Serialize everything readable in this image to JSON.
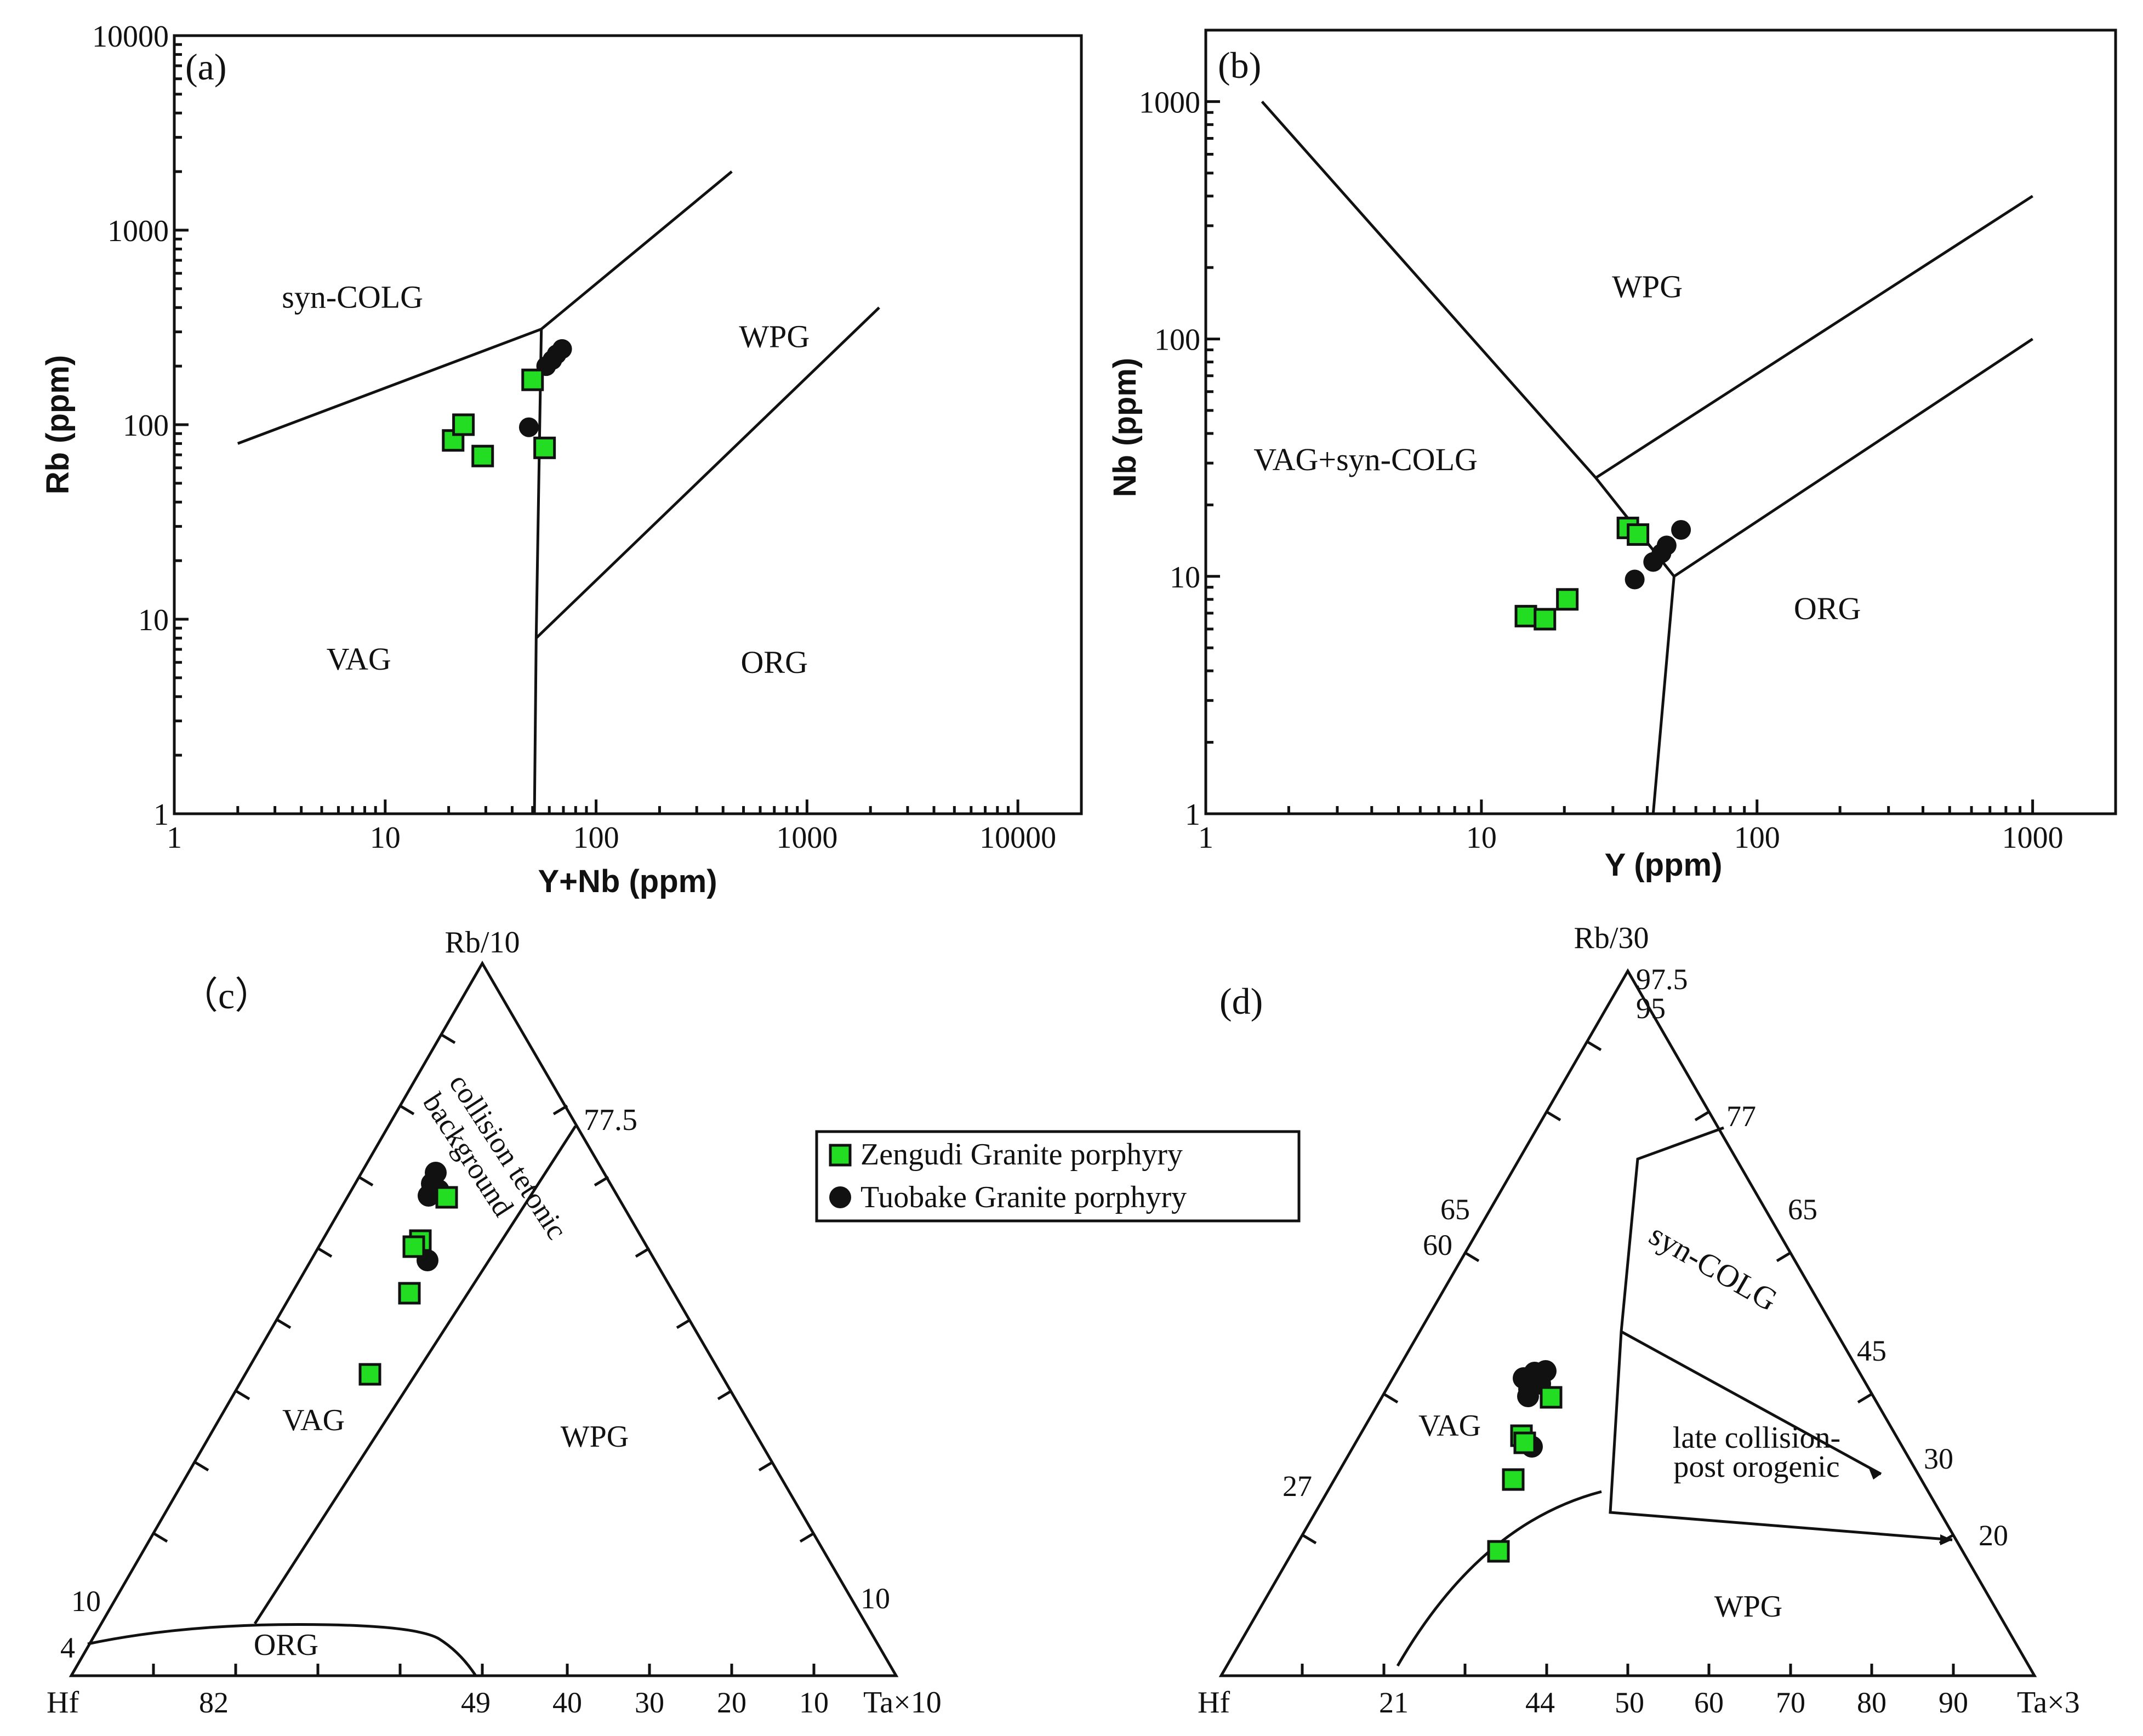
{
  "colors": {
    "zengudi": "#22dd22",
    "tuobake": "#111111",
    "line": "#111111"
  },
  "legend": {
    "items": [
      {
        "label": "Zengudi Granite porphyry",
        "marker": "green-square"
      },
      {
        "label": "Tuobake Granite porphyry",
        "marker": "black-circle"
      }
    ]
  },
  "chart_data": [
    {
      "id": "a",
      "panel_label": "(a)",
      "type": "scatter",
      "scale": "log-log",
      "xlabel": "Y+Nb (ppm)",
      "ylabel": "Rb (ppm)",
      "xlim": [
        1,
        20000
      ],
      "ylim": [
        1,
        10000
      ],
      "xticks": [
        {
          "v": 1,
          "label": "1"
        },
        {
          "v": 10,
          "label": "10"
        },
        {
          "v": 100,
          "label": "100"
        },
        {
          "v": 1000,
          "label": "1000"
        },
        {
          "v": 10000,
          "label": "10000"
        }
      ],
      "yticks": [
        {
          "v": 1,
          "label": "1"
        },
        {
          "v": 10,
          "label": "10"
        },
        {
          "v": 100,
          "label": "100"
        },
        {
          "v": 1000,
          "label": "1000"
        },
        {
          "v": 10000,
          "label": "10000"
        }
      ],
      "boundaries": [
        [
          [
            2,
            80
          ],
          [
            55,
            310
          ],
          [
            440,
            2000
          ]
        ],
        [
          [
            55,
            310
          ],
          [
            52,
            8
          ],
          [
            51,
            1
          ]
        ],
        [
          [
            52,
            8
          ],
          [
            2200,
            400
          ]
        ]
      ],
      "fields": [
        {
          "label": "syn-COLG",
          "x": 7,
          "y": 400
        },
        {
          "label": "WPG",
          "x": 700,
          "y": 250
        },
        {
          "label": "VAG",
          "x": 7.5,
          "y": 5.5
        },
        {
          "label": "ORG",
          "x": 700,
          "y": 5.3
        }
      ],
      "series": [
        {
          "name": "Zengudi Granite porphyry",
          "points": [
            [
              21,
              83
            ],
            [
              23.5,
              100
            ],
            [
              29,
              69
            ],
            [
              50,
              170
            ],
            [
              57,
              76
            ]
          ]
        },
        {
          "name": "Tuobake Granite porphyry",
          "points": [
            [
              48,
              97
            ],
            [
              58,
              200
            ],
            [
              62,
              215
            ],
            [
              65,
              230
            ],
            [
              69,
              245
            ]
          ]
        }
      ]
    },
    {
      "id": "b",
      "panel_label": "(b)",
      "type": "scatter",
      "scale": "log-log",
      "xlabel": "Y (ppm)",
      "ylabel": "Nb (ppm)",
      "xlim": [
        1,
        2000
      ],
      "ylim": [
        1,
        2000
      ],
      "xticks": [
        {
          "v": 1,
          "label": "1"
        },
        {
          "v": 10,
          "label": "10"
        },
        {
          "v": 100,
          "label": "100"
        },
        {
          "v": 1000,
          "label": "1000"
        }
      ],
      "yticks": [
        {
          "v": 1,
          "label": "1"
        },
        {
          "v": 10,
          "label": "10"
        },
        {
          "v": 100,
          "label": "100"
        },
        {
          "v": 1000,
          "label": "1000"
        }
      ],
      "boundaries": [
        [
          [
            1.6,
            1000
          ],
          [
            26,
            26
          ],
          [
            50,
            10
          ],
          [
            42,
            1
          ]
        ],
        [
          [
            26,
            26
          ],
          [
            1000,
            400
          ]
        ],
        [
          [
            50,
            10
          ],
          [
            1000,
            100
          ]
        ]
      ],
      "fields": [
        {
          "label": "WPG",
          "x": 40,
          "y": 150
        },
        {
          "label": "VAG+syn-COLG",
          "x": 3.8,
          "y": 28
        },
        {
          "label": "ORG",
          "x": 180,
          "y": 6.6
        }
      ],
      "series": [
        {
          "name": "Zengudi Granite porphyry",
          "points": [
            [
              14.5,
              6.8
            ],
            [
              17,
              6.6
            ],
            [
              20.5,
              8
            ],
            [
              34,
              16
            ],
            [
              37,
              15
            ]
          ]
        },
        {
          "name": "Tuobake Granite porphyry",
          "points": [
            [
              36,
              9.7
            ],
            [
              42,
              11.5
            ],
            [
              45,
              12.5
            ],
            [
              47,
              13.5
            ],
            [
              53,
              15.7
            ]
          ]
        }
      ]
    },
    {
      "id": "c",
      "panel_label": "（c）",
      "type": "ternary",
      "apex_top": "Rb/10",
      "apex_left": "Hf",
      "apex_right": "Ta×10",
      "edge_labels": [
        {
          "text": "77.5",
          "pos": "right-edge"
        },
        {
          "text": "10",
          "pos": "left-edge"
        },
        {
          "text": "4",
          "pos": "left-edge"
        },
        {
          "text": "10",
          "pos": "right-edge"
        },
        {
          "text": "82",
          "pos": "base"
        },
        {
          "text": "49",
          "pos": "base"
        },
        {
          "text": "40",
          "pos": "base"
        },
        {
          "text": "30",
          "pos": "base"
        },
        {
          "text": "20",
          "pos": "base"
        },
        {
          "text": "10",
          "pos": "base"
        }
      ],
      "fields": [
        {
          "label": "collision tetonic",
          "pos": "upper"
        },
        {
          "label": "background",
          "pos": "upper"
        },
        {
          "label": "VAG",
          "pos": "left"
        },
        {
          "label": "WPG",
          "pos": "right"
        },
        {
          "label": "ORG",
          "pos": "bottom"
        }
      ],
      "series": [
        {
          "name": "Zengudi Granite porphyry",
          "points": "green squares in VAG field near the collision boundary"
        },
        {
          "name": "Tuobake Granite porphyry",
          "points": "black circles clustered near the collision boundary"
        }
      ]
    },
    {
      "id": "d",
      "panel_label": "(d)",
      "type": "ternary",
      "apex_top": "Rb/30",
      "apex_left": "Hf",
      "apex_right": "Ta×3",
      "edge_labels": [
        {
          "text": "97.5",
          "pos": "apex"
        },
        {
          "text": "95",
          "pos": "apex"
        },
        {
          "text": "77",
          "pos": "right-edge"
        },
        {
          "text": "65",
          "pos": "left-edge"
        },
        {
          "text": "60",
          "pos": "left-edge"
        },
        {
          "text": "65",
          "pos": "right-edge"
        },
        {
          "text": "45",
          "pos": "right-edge"
        },
        {
          "text": "30",
          "pos": "right-edge"
        },
        {
          "text": "27",
          "pos": "left-edge"
        },
        {
          "text": "20",
          "pos": "right-edge"
        },
        {
          "text": "21",
          "pos": "base"
        },
        {
          "text": "44",
          "pos": "base"
        },
        {
          "text": "50",
          "pos": "base"
        },
        {
          "text": "60",
          "pos": "base"
        },
        {
          "text": "70",
          "pos": "base"
        },
        {
          "text": "80",
          "pos": "base"
        },
        {
          "text": "90",
          "pos": "base"
        }
      ],
      "fields": [
        {
          "label": "syn-COLG",
          "pos": "upper-right"
        },
        {
          "label": "late collision-",
          "pos": "middle-right"
        },
        {
          "label": "post orogenic",
          "pos": "middle-right"
        },
        {
          "label": "VAG",
          "pos": "left"
        },
        {
          "label": "WPG",
          "pos": "bottom"
        }
      ],
      "series": [
        {
          "name": "Zengudi Granite porphyry",
          "points": "green squares in VAG field"
        },
        {
          "name": "Tuobake Granite porphyry",
          "points": "black circles clustered in VAG field"
        }
      ]
    }
  ]
}
